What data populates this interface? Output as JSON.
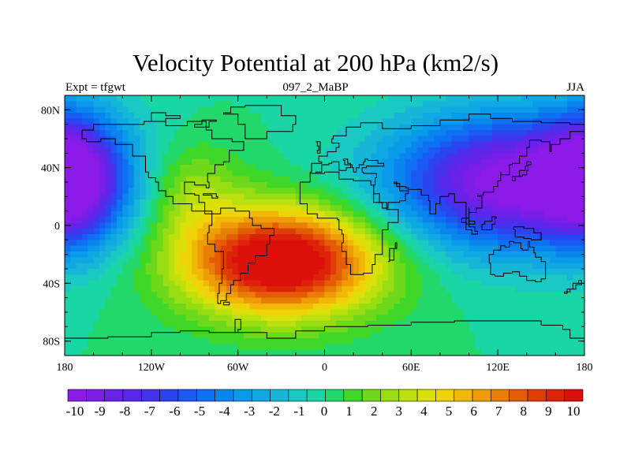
{
  "chart_data": {
    "type": "heatmap",
    "title": "Velocity Potential at 200 hPa (km2/s)",
    "left_string": "Expt = tfgwt",
    "center_string": "097_2_MaBP",
    "right_string": "JJA",
    "x_ticks": [
      "180",
      "120W",
      "60W",
      "0",
      "60E",
      "120E",
      "180"
    ],
    "x_tick_values": [
      -180,
      -120,
      -60,
      0,
      60,
      120,
      180
    ],
    "y_ticks": [
      "80N",
      "40N",
      "0",
      "40S",
      "80S"
    ],
    "y_tick_values": [
      80,
      40,
      0,
      -40,
      -80
    ],
    "xlim": [
      -180,
      180
    ],
    "ylim": [
      -90,
      90
    ],
    "colorbar_labels": [
      "-10",
      "-9",
      "-8",
      "-7",
      "-6",
      "-5",
      "-4",
      "-3",
      "-2",
      "-1",
      "0",
      "1",
      "2",
      "3",
      "4",
      "5",
      "6",
      "7",
      "8",
      "9",
      "10"
    ],
    "colorbar_levels": [
      -10,
      -9,
      -8,
      -7,
      -6,
      -5,
      -4,
      -3,
      -2,
      -1,
      0,
      1,
      2,
      3,
      4,
      5,
      6,
      7,
      8,
      9,
      10
    ],
    "colorbar_colors": [
      "#8c1ae8",
      "#7d1ee8",
      "#6a22e8",
      "#5a28ea",
      "#4433ec",
      "#2a45f0",
      "#1a5af2",
      "#0e70f2",
      "#0a85ee",
      "#0a9aea",
      "#10a8e2",
      "#16b6d8",
      "#1ac8c4",
      "#1ad6a4",
      "#22d86a",
      "#40d828",
      "#6ed81a",
      "#98dc12",
      "#bce00c",
      "#dce00a",
      "#f0d208",
      "#f2b808",
      "#ee9c08",
      "#e87e06",
      "#e45c06",
      "#e03c08",
      "#dc2208",
      "#dc100a"
    ],
    "centers": [
      {
        "lon": -30,
        "lat": -25,
        "amp": 11.5,
        "sx": 48,
        "sy": 26
      },
      {
        "lon": -95,
        "lat": 25,
        "amp": 3,
        "sx": 25,
        "sy": 25
      },
      {
        "lon": 135,
        "lat": 30,
        "amp": -10.5,
        "sx": 62,
        "sy": 32
      },
      {
        "lon": -175,
        "lat": 35,
        "amp": -6,
        "sx": 22,
        "sy": 32
      }
    ],
    "grid": false,
    "colorbar_position": "bottom"
  }
}
